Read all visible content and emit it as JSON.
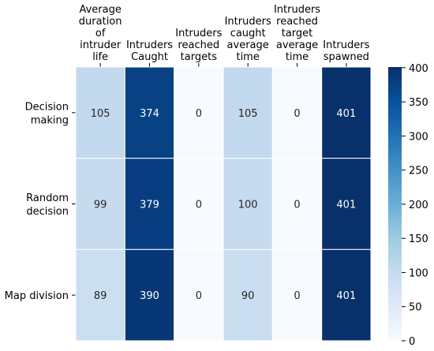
{
  "chart_data": {
    "type": "heatmap",
    "columns": [
      [
        "Average",
        "duration",
        "of",
        "intruder",
        "life"
      ],
      [
        "Intruders",
        "Caught"
      ],
      [
        "Intruders",
        "reached",
        "targets"
      ],
      [
        "Intruders",
        "caught",
        "average",
        "time"
      ],
      [
        "Intruders",
        "reached",
        "target",
        "average",
        "time"
      ],
      [
        "Intruders",
        "spawned"
      ]
    ],
    "rows": [
      [
        "Decision",
        "making"
      ],
      [
        "Random",
        "decision"
      ],
      [
        "Map division"
      ]
    ],
    "values": [
      [
        105,
        374,
        0,
        105,
        0,
        401
      ],
      [
        99,
        379,
        0,
        100,
        0,
        401
      ],
      [
        89,
        390,
        0,
        90,
        0,
        401
      ]
    ],
    "colormap": "Blues",
    "vmin": 0,
    "vmax": 401,
    "colorbar": {
      "ticks": [
        "0",
        "50",
        "100",
        "150",
        "200",
        "250",
        "300",
        "350",
        "400"
      ]
    },
    "annotate": true,
    "grid_line_color": "#ffffff"
  }
}
